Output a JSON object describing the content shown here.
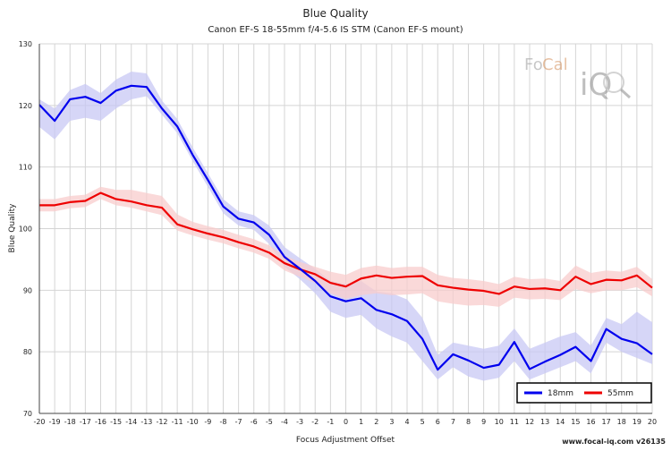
{
  "chart_data": {
    "type": "line",
    "title": "Blue Quality",
    "subtitle": "Canon EF-S 18-55mm f/4-5.6 IS STM (Canon EF-S mount)",
    "xlabel": "Focus Adjustment Offset",
    "ylabel": "Blue Quality",
    "xlim": [
      -20,
      20
    ],
    "ylim": [
      70,
      130
    ],
    "yticks": [
      70,
      80,
      90,
      100,
      110,
      120,
      130
    ],
    "x": [
      -20,
      -19,
      -18,
      -17,
      -16,
      -15,
      -14,
      -13,
      -12,
      -11,
      -10,
      -9,
      -8,
      -7,
      -6,
      -5,
      -4,
      -3,
      -2,
      -1,
      0,
      1,
      2,
      3,
      4,
      5,
      6,
      7,
      8,
      9,
      10,
      11,
      12,
      13,
      14,
      15,
      16,
      17,
      18,
      19,
      20
    ],
    "grid": true,
    "legend_position": "bottom-right",
    "series": [
      {
        "name": "18mm",
        "color": "#0000ee",
        "band_color": "#c8c8f4",
        "values": [
          120.1,
          117.5,
          121.0,
          121.4,
          120.4,
          122.4,
          123.2,
          123.0,
          119.5,
          116.6,
          112.0,
          107.9,
          103.6,
          101.6,
          101.0,
          99.0,
          95.4,
          93.5,
          91.5,
          89.0,
          88.2,
          88.7,
          86.8,
          86.1,
          85.0,
          82.1,
          77.1,
          79.6,
          78.6,
          77.4,
          77.9,
          81.6,
          77.2,
          78.4,
          79.5,
          80.8,
          78.5,
          83.7,
          82.1,
          81.4,
          79.6
        ],
        "lower": [
          116.5,
          114.5,
          117.5,
          118.0,
          117.5,
          119.5,
          121.0,
          121.5,
          118.5,
          115.5,
          111.0,
          106.8,
          102.5,
          100.5,
          99.8,
          97.5,
          93.8,
          91.8,
          89.5,
          86.5,
          85.5,
          86.0,
          83.8,
          82.5,
          81.5,
          78.5,
          75.5,
          77.5,
          76.0,
          75.3,
          75.8,
          78.5,
          75.5,
          76.5,
          77.5,
          78.5,
          76.5,
          81.5,
          80.0,
          79.0,
          78.0
        ],
        "upper": [
          121.0,
          119.5,
          122.5,
          123.5,
          122.0,
          124.2,
          125.5,
          125.2,
          120.8,
          117.8,
          113.2,
          109.0,
          104.8,
          102.8,
          102.2,
          100.5,
          97.0,
          95.2,
          93.5,
          91.5,
          91.0,
          91.5,
          89.8,
          89.5,
          88.5,
          85.5,
          79.5,
          81.5,
          81.0,
          80.5,
          81.0,
          83.8,
          80.5,
          81.5,
          82.5,
          83.2,
          81.0,
          85.5,
          84.5,
          86.5,
          84.8
        ]
      },
      {
        "name": "55mm",
        "color": "#ee0000",
        "band_color": "#f8cccc",
        "values": [
          103.8,
          103.8,
          104.3,
          104.5,
          105.8,
          104.8,
          104.4,
          103.8,
          103.4,
          100.7,
          99.9,
          99.2,
          98.6,
          97.8,
          97.1,
          96.1,
          94.4,
          93.4,
          92.6,
          91.2,
          90.6,
          91.9,
          92.4,
          92.0,
          92.2,
          92.3,
          90.8,
          90.4,
          90.1,
          89.9,
          89.4,
          90.6,
          90.2,
          90.3,
          90.0,
          92.2,
          91.0,
          91.7,
          91.6,
          92.4,
          90.4
        ],
        "lower": [
          102.8,
          102.8,
          103.3,
          103.5,
          104.8,
          103.8,
          103.4,
          102.8,
          102.2,
          99.7,
          98.9,
          98.2,
          97.6,
          96.8,
          96.1,
          95.1,
          93.2,
          92.2,
          91.2,
          89.5,
          88.6,
          89.2,
          89.5,
          89.2,
          89.3,
          89.5,
          88.2,
          87.8,
          87.5,
          87.6,
          87.3,
          88.8,
          88.5,
          88.6,
          88.4,
          90.2,
          89.5,
          90.0,
          90.0,
          90.5,
          89.0
        ],
        "upper": [
          104.8,
          104.8,
          105.3,
          105.5,
          106.8,
          106.3,
          106.3,
          105.8,
          105.3,
          102.3,
          101.1,
          100.4,
          99.8,
          99.0,
          98.3,
          97.3,
          95.6,
          94.6,
          93.8,
          93.0,
          92.5,
          93.6,
          94.0,
          93.6,
          93.8,
          93.8,
          92.5,
          92.0,
          91.8,
          91.5,
          91.0,
          92.2,
          91.8,
          91.9,
          91.5,
          94.0,
          92.8,
          93.2,
          93.0,
          93.8,
          91.8
        ]
      }
    ]
  },
  "logo": {
    "text_part1": "Fo",
    "text_part2": "Cal",
    "text_part3": "iQ"
  },
  "footer": "www.focal-iq.com v26135"
}
